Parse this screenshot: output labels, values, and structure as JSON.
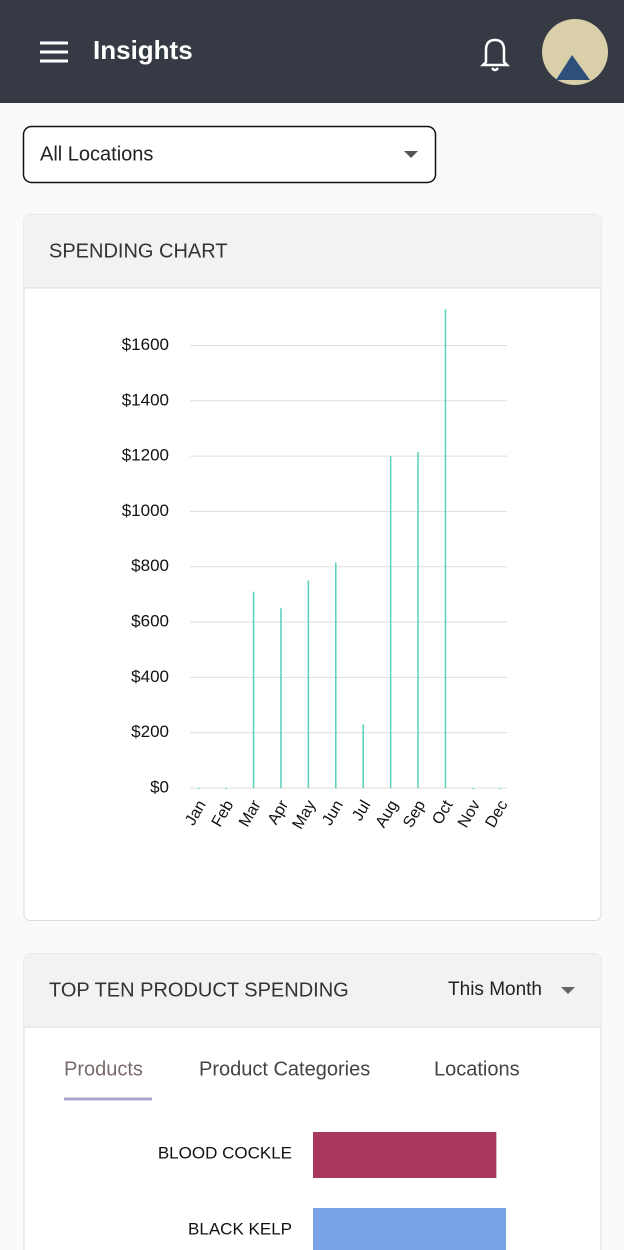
{
  "header": {
    "title": "Insights"
  },
  "location_filter": "All Locations",
  "product_card": {
    "period": "This Month",
    "tabs": [
      "Products",
      "Product Categories",
      "Locations"
    ],
    "active_tab": 0
  },
  "chart_data": [
    {
      "type": "bar",
      "title": "SPENDING CHART",
      "categories": [
        "Jan",
        "Feb",
        "Mar",
        "Apr",
        "May",
        "Jun",
        "Jul",
        "Aug",
        "Sep",
        "Oct",
        "Nov",
        "Dec"
      ],
      "values": [
        0,
        0,
        710,
        650,
        750,
        815,
        230,
        1200,
        1215,
        1730,
        0,
        0
      ],
      "color": "#56cfbd",
      "ylim": [
        0,
        1750
      ],
      "yticks": [
        {
          "value": 0,
          "label": "$0"
        },
        {
          "value": 200,
          "label": "$200"
        },
        {
          "value": 400,
          "label": "$400"
        },
        {
          "value": 600,
          "label": "$600"
        },
        {
          "value": 800,
          "label": "$800"
        },
        {
          "value": 1000,
          "label": "$1000"
        },
        {
          "value": 1200,
          "label": "$1200"
        },
        {
          "value": 1400,
          "label": "$1400"
        },
        {
          "value": 1600,
          "label": "$1600"
        }
      ],
      "grid": true
    },
    {
      "type": "barh",
      "title": "TOP TEN PRODUCT SPENDING",
      "categories": [
        "BLOOD COCKLE",
        "BLACK KELP"
      ],
      "values": [
        95,
        100
      ],
      "colors": [
        "#a8385d",
        "#7aa3e5"
      ],
      "xlim": [
        0,
        100
      ]
    }
  ]
}
